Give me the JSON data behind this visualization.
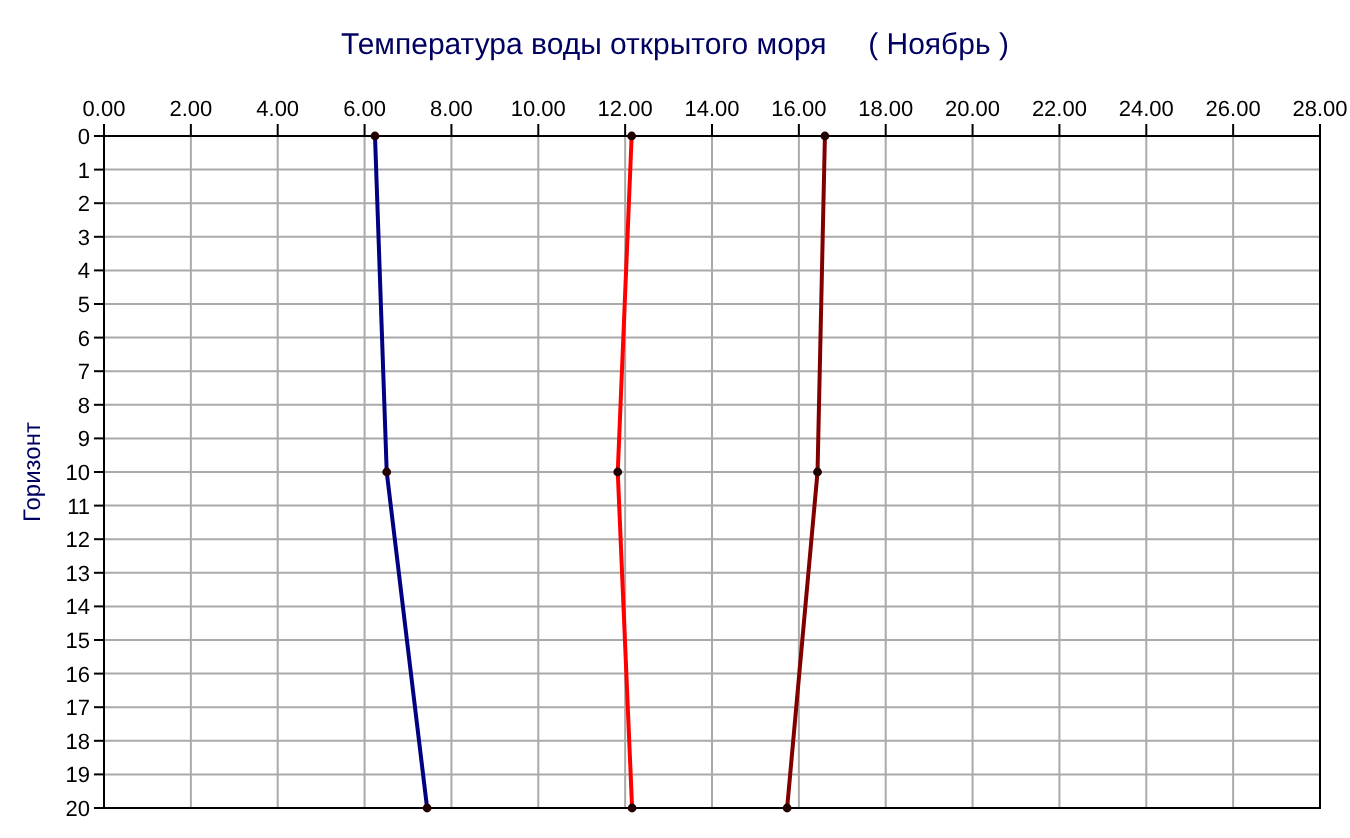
{
  "chart_data": {
    "type": "line",
    "title": "Температура воды открытого моря     ( Ноябрь )",
    "ylabel": "Горизонт",
    "orientation": "horizontal",
    "x": [
      0,
      10,
      20
    ],
    "series": [
      {
        "color": "#000080",
        "values": [
          6.24,
          6.51,
          7.44
        ]
      },
      {
        "color": "#ff0000",
        "values": [
          12.15,
          11.83,
          12.16
        ]
      },
      {
        "color": "#800000",
        "values": [
          16.6,
          16.43,
          15.73
        ]
      }
    ],
    "xlim": [
      0,
      28
    ],
    "xticks": [
      {
        "value": 0,
        "label": "0.00"
      },
      {
        "value": 2,
        "label": "2.00"
      },
      {
        "value": 4,
        "label": "4.00"
      },
      {
        "value": 6,
        "label": "6.00"
      },
      {
        "value": 8,
        "label": "8.00"
      },
      {
        "value": 10,
        "label": "10.00"
      },
      {
        "value": 12,
        "label": "12.00"
      },
      {
        "value": 14,
        "label": "14.00"
      },
      {
        "value": 16,
        "label": "16.00"
      },
      {
        "value": 18,
        "label": "18.00"
      },
      {
        "value": 20,
        "label": "20.00"
      },
      {
        "value": 22,
        "label": "22.00"
      },
      {
        "value": 24,
        "label": "24.00"
      },
      {
        "value": 26,
        "label": "26.00"
      },
      {
        "value": 28,
        "label": "28.00"
      }
    ],
    "ylim": [
      20,
      0
    ],
    "yticks": [
      0,
      1,
      2,
      3,
      4,
      5,
      6,
      7,
      8,
      9,
      10,
      11,
      12,
      13,
      14,
      15,
      16,
      17,
      18,
      19,
      20
    ],
    "grid": true,
    "marker": "circle",
    "line_style": "solid"
  }
}
